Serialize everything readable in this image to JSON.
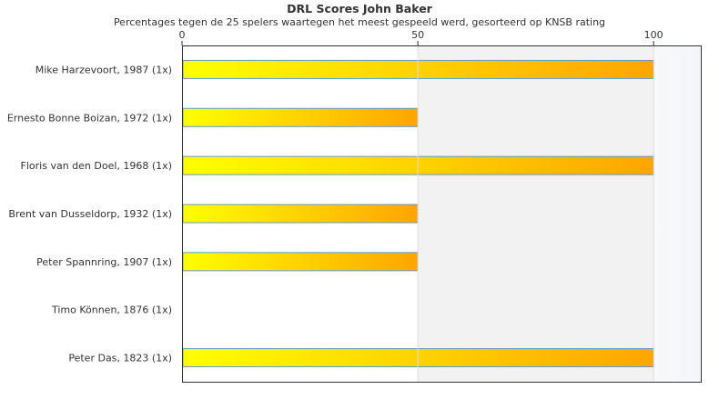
{
  "chart_data": {
    "type": "bar",
    "orientation": "horizontal",
    "title": "DRL Scores John Baker",
    "subtitle": "Percentages tegen de 25 spelers waartegen het meest gespeeld werd, gesorteerd op KNSB rating",
    "categories": [
      "Mike Harzevoort, 1987 (1x)",
      "Ernesto Bonne Boizan, 1972 (1x)",
      "Floris van den Doel, 1968 (1x)",
      "Brent van Dusseldorp, 1932 (1x)",
      "Peter Spannring, 1907 (1x)",
      "Timo Können, 1876 (1x)",
      "Peter Das, 1823 (1x)"
    ],
    "values": [
      100,
      50,
      100,
      50,
      50,
      0,
      100
    ],
    "xlim": [
      0,
      110
    ],
    "xticks": [
      0,
      50,
      100
    ],
    "xaxis_position": "top",
    "grid": true,
    "bar_gradient": [
      "#ffff00",
      "#ffa500"
    ],
    "bar_border": "#5b9bd5"
  }
}
